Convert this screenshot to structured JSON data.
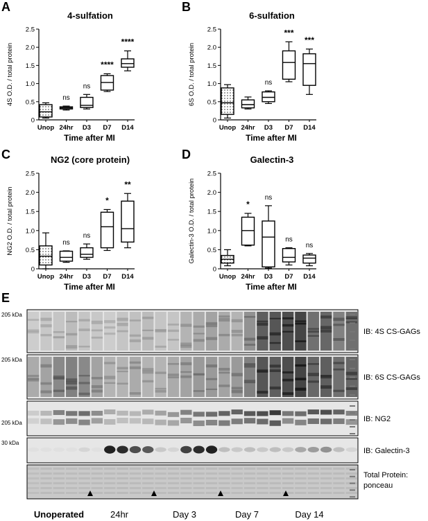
{
  "figure": {
    "panel_letters": [
      "A",
      "B",
      "C",
      "D",
      "E"
    ],
    "stat_label": "ns"
  },
  "chart_data": [
    {
      "type": "box",
      "panel": "A",
      "title": "4-sulfation",
      "xlabel": "Time after MI",
      "ylabel": "4S O.D. / total protein",
      "categories": [
        "Unop",
        "24hr",
        "D3",
        "D7",
        "D14"
      ],
      "ylim": [
        0,
        2.5
      ],
      "yticks": [
        "0",
        "0.5",
        "1.0",
        "1.5",
        "2.0",
        "2.5"
      ],
      "boxes": [
        {
          "min": 0.05,
          "q1": 0.08,
          "median": 0.22,
          "q3": 0.42,
          "max": 0.47,
          "pattern": "dots"
        },
        {
          "min": 0.27,
          "q1": 0.3,
          "median": 0.33,
          "q3": 0.36,
          "max": 0.38
        },
        {
          "min": 0.3,
          "q1": 0.34,
          "median": 0.4,
          "q3": 0.62,
          "max": 0.7
        },
        {
          "min": 0.78,
          "q1": 0.82,
          "median": 1.03,
          "q3": 1.22,
          "max": 1.27
        },
        {
          "min": 1.35,
          "q1": 1.45,
          "median": 1.55,
          "q3": 1.68,
          "max": 1.9
        }
      ],
      "annotations": [
        "",
        "ns",
        "ns",
        "****",
        "****"
      ]
    },
    {
      "type": "box",
      "panel": "B",
      "title": "6-sulfation",
      "xlabel": "Time after MI",
      "ylabel": "6S O.D. / total protein",
      "categories": [
        "Unop",
        "24hr",
        "D3",
        "D7",
        "D14"
      ],
      "ylim": [
        0,
        2.5
      ],
      "yticks": [
        "0",
        "0.5",
        "1.0",
        "1.5",
        "2.0",
        "2.5"
      ],
      "boxes": [
        {
          "min": 0.05,
          "q1": 0.15,
          "median": 0.47,
          "q3": 0.88,
          "max": 0.97,
          "pattern": "dots"
        },
        {
          "min": 0.3,
          "q1": 0.33,
          "median": 0.42,
          "q3": 0.55,
          "max": 0.63
        },
        {
          "min": 0.45,
          "q1": 0.5,
          "median": 0.62,
          "q3": 0.77,
          "max": 0.8
        },
        {
          "min": 1.05,
          "q1": 1.12,
          "median": 1.58,
          "q3": 1.9,
          "max": 2.15
        },
        {
          "min": 0.7,
          "q1": 0.95,
          "median": 1.55,
          "q3": 1.82,
          "max": 1.95
        }
      ],
      "annotations": [
        "",
        "",
        "ns",
        "***",
        "***"
      ]
    },
    {
      "type": "box",
      "panel": "C",
      "title": "NG2 (core protein)",
      "xlabel": "Time after MI",
      "ylabel": "NG2 O.D. / total protein",
      "categories": [
        "Unop",
        "24hr",
        "D3",
        "D7",
        "D14"
      ],
      "ylim": [
        0,
        2.5
      ],
      "yticks": [
        "0",
        "0.5",
        "1.0",
        "1.5",
        "2.0",
        "2.5"
      ],
      "boxes": [
        {
          "min": 0.0,
          "q1": 0.1,
          "median": 0.33,
          "q3": 0.6,
          "max": 0.94,
          "pattern": "dots"
        },
        {
          "min": 0.17,
          "q1": 0.2,
          "median": 0.3,
          "q3": 0.46,
          "max": 0.47
        },
        {
          "min": 0.25,
          "q1": 0.3,
          "median": 0.38,
          "q3": 0.55,
          "max": 0.65
        },
        {
          "min": 0.48,
          "q1": 0.55,
          "median": 1.1,
          "q3": 1.48,
          "max": 1.55
        },
        {
          "min": 0.55,
          "q1": 0.7,
          "median": 1.05,
          "q3": 1.77,
          "max": 1.97
        }
      ],
      "annotations": [
        "",
        "ns",
        "ns",
        "*",
        "**"
      ]
    },
    {
      "type": "box",
      "panel": "D",
      "title": "Galectin-3",
      "xlabel": "Time after MI",
      "ylabel": "Galectin-3 O.D. / total protein",
      "categories": [
        "Unop",
        "24hr",
        "D3",
        "D7",
        "D14"
      ],
      "ylim": [
        0,
        2.5
      ],
      "yticks": [
        "0",
        "0.5",
        "1.0",
        "1.5",
        "2.0",
        "2.5"
      ],
      "boxes": [
        {
          "min": 0.08,
          "q1": 0.15,
          "median": 0.25,
          "q3": 0.35,
          "max": 0.5,
          "pattern": "dots"
        },
        {
          "min": 0.6,
          "q1": 0.62,
          "median": 1.0,
          "q3": 1.35,
          "max": 1.45
        },
        {
          "min": 0.02,
          "q1": 0.05,
          "median": 0.83,
          "q3": 1.25,
          "max": 1.65
        },
        {
          "min": 0.1,
          "q1": 0.18,
          "median": 0.3,
          "q3": 0.53,
          "max": 0.55
        },
        {
          "min": 0.08,
          "q1": 0.15,
          "median": 0.28,
          "q3": 0.36,
          "max": 0.4
        }
      ],
      "annotations": [
        "",
        "*",
        "ns",
        "ns",
        "ns"
      ]
    }
  ],
  "blot": {
    "rows": [
      {
        "label": "IB: 4S CS-GAGs",
        "marker": "205 kDa"
      },
      {
        "label": "IB: 6S CS-GAGs",
        "marker": "205 kDa"
      },
      {
        "label": "IB: NG2",
        "marker": "205 kDa"
      },
      {
        "label": "IB: Galectin-3",
        "marker": "30 kDa"
      },
      {
        "label": "Total Protein: ponceau",
        "marker": ""
      }
    ],
    "groups": [
      "Unoperated",
      "24hr",
      "Day 3",
      "Day 7",
      "Day 14"
    ]
  }
}
